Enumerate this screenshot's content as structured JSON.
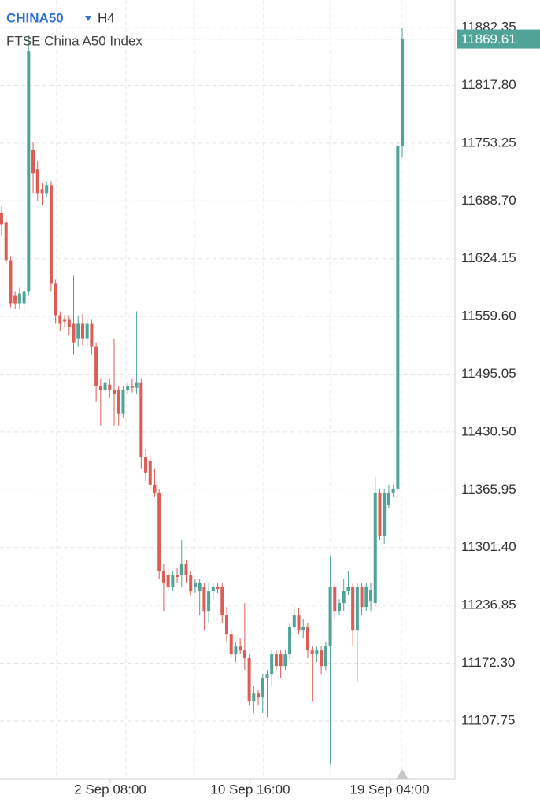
{
  "chart_data": {
    "type": "candlestick",
    "title": "CHINA50",
    "interval": "H4",
    "subtitle": "FTSE China A50 Index",
    "up_color": "#4fa397",
    "down_color": "#dc5d55",
    "grid": true,
    "open": [
      11675.4,
      11664.9,
      11622.6,
      11583.0,
      11574.2,
      11574.2,
      11587.4,
      11745.9,
      11723.9,
      11701.9,
      11697.5,
      11706.3,
      11596.2,
      11561.0,
      11556.6,
      11556.6,
      11552.2,
      11534.5,
      11552.2,
      11534.5,
      11552.2,
      11525.7,
      11481.7,
      11477.3,
      11483.5,
      11477.3,
      11477.3,
      11450.9,
      11477.3,
      11481.7,
      11479.9,
      11486.1,
      11402.5,
      11398.0,
      11371.6,
      11362.8,
      11274.8,
      11270.4,
      11257.2,
      11270.4,
      11270.4,
      11283.6,
      11270.4,
      11257.2,
      11252.7,
      11257.2,
      11230.7,
      11252.7,
      11257.2,
      11257.2,
      11226.3,
      11204.3,
      11182.3,
      11191.1,
      11186.7,
      11177.9,
      11129.5,
      11138.3,
      11133.9,
      11155.9,
      11160.3,
      11182.3,
      11182.3,
      11169.1,
      11182.3,
      11213.1,
      11226.3,
      11208.7,
      11213.1,
      11186.7,
      11182.3,
      11186.7,
      11169.1,
      11191.1,
      11257.2,
      11230.7,
      11239.5,
      11252.7,
      11257.2,
      11208.7,
      11257.2,
      11235.1,
      11242.2,
      11239.5,
      11362.8,
      11314.4,
      11349.6,
      11362.8,
      11367.2,
      11750.3
    ],
    "high": [
      11682.5,
      11671.0,
      11627.0,
      11587.4,
      11591.8,
      11591.8,
      11873.6,
      11754.7,
      11732.7,
      11708.9,
      11710.7,
      11710.7,
      11600.6,
      11565.4,
      11561.0,
      11561.0,
      11605.0,
      11561.0,
      11562.7,
      11556.6,
      11556.6,
      11530.1,
      11490.5,
      11499.3,
      11490.5,
      11534.5,
      11481.7,
      11481.7,
      11486.1,
      11490.5,
      11565.4,
      11490.5,
      11411.3,
      11404.2,
      11389.2,
      11367.2,
      11283.6,
      11279.2,
      11274.8,
      11279.2,
      11310.0,
      11288.0,
      11274.8,
      11266.0,
      11266.0,
      11261.6,
      11261.6,
      11261.6,
      11261.6,
      11261.6,
      11235.1,
      11210.5,
      11195.5,
      11199.9,
      11239.5,
      11182.3,
      11147.1,
      11142.7,
      11160.3,
      11164.7,
      11186.7,
      11186.7,
      11186.7,
      11186.7,
      11217.5,
      11235.1,
      11233.4,
      11221.9,
      11217.5,
      11191.1,
      11191.1,
      11191.1,
      11195.5,
      11292.4,
      11261.6,
      11243.9,
      11266.0,
      11274.8,
      11261.6,
      11261.6,
      11261.6,
      11261.6,
      11261.6,
      11380.4,
      11367.2,
      11367.2,
      11371.6,
      11371.6,
      11754.7,
      11882.4
    ],
    "low": [
      11649.0,
      11618.2,
      11569.8,
      11568.0,
      11568.0,
      11565.4,
      11583.0,
      11697.5,
      11688.6,
      11684.2,
      11693.0,
      11587.4,
      11552.2,
      11543.3,
      11547.8,
      11538.9,
      11516.9,
      11525.7,
      11527.5,
      11525.7,
      11516.9,
      11464.1,
      11437.7,
      11472.9,
      11468.5,
      11437.7,
      11437.7,
      11446.5,
      11472.9,
      11474.7,
      11472.9,
      11389.2,
      11376.0,
      11367.2,
      11358.4,
      11266.0,
      11230.7,
      11252.7,
      11252.7,
      11261.6,
      11257.2,
      11261.6,
      11248.3,
      11251.0,
      11226.3,
      11208.7,
      11217.5,
      11243.9,
      11251.0,
      11217.5,
      11195.5,
      11177.9,
      11173.5,
      11182.3,
      11164.7,
      11125.1,
      11116.3,
      11125.1,
      11116.3,
      11111.9,
      11147.1,
      11164.7,
      11155.9,
      11164.7,
      11177.9,
      11208.7,
      11204.3,
      11199.9,
      11177.9,
      11129.5,
      11173.5,
      11160.3,
      11164.7,
      11059.0,
      11221.9,
      11226.3,
      11230.7,
      11248.3,
      11191.1,
      11151.5,
      11226.3,
      11230.7,
      11230.7,
      11235.1,
      11310.0,
      11305.6,
      11345.2,
      11358.4,
      11358.4,
      11737.1
    ],
    "close": [
      11662.2,
      11622.6,
      11574.2,
      11574.2,
      11585.6,
      11587.4,
      11856.0,
      11719.5,
      11697.5,
      11697.5,
      11706.3,
      11596.2,
      11561.0,
      11552.2,
      11553.9,
      11547.8,
      11530.1,
      11552.2,
      11534.5,
      11552.2,
      11525.7,
      11481.7,
      11477.3,
      11486.1,
      11477.3,
      11472.9,
      11450.9,
      11477.3,
      11481.7,
      11479.9,
      11486.1,
      11402.5,
      11384.8,
      11371.6,
      11362.8,
      11274.8,
      11261.6,
      11257.2,
      11270.4,
      11268.6,
      11283.6,
      11270.4,
      11252.7,
      11261.6,
      11261.6,
      11230.7,
      11252.7,
      11257.2,
      11255.4,
      11226.3,
      11204.3,
      11182.3,
      11191.1,
      11186.7,
      11177.9,
      11129.5,
      11138.3,
      11133.9,
      11155.9,
      11160.3,
      11182.3,
      11169.1,
      11169.1,
      11182.3,
      11213.1,
      11226.3,
      11208.7,
      11213.1,
      11186.7,
      11182.3,
      11186.7,
      11169.1,
      11191.1,
      11257.2,
      11230.7,
      11239.5,
      11252.7,
      11257.2,
      11208.7,
      11257.2,
      11235.1,
      11257.2,
      11254.5,
      11362.8,
      11314.4,
      11362.8,
      11362.8,
      11367.2,
      11750.3,
      11869.61
    ],
    "ylim": [
      11042.6,
      11913.2
    ],
    "yticks": [
      11107.75,
      {
        "value": 11172.3,
        "label": "11172.30"
      },
      11236.85,
      {
        "value": 11301.4,
        "label": "11301.40"
      },
      11365.95,
      {
        "value": 11430.5,
        "label": "11430.50"
      },
      11495.05,
      {
        "value": 11559.6,
        "label": "11559.60"
      },
      11624.15,
      {
        "value": 11688.7,
        "label": "11688.70"
      },
      11753.25,
      {
        "value": 11817.8,
        "label": "11817.80"
      },
      11882.35
    ],
    "xlim": [
      -0.35,
      100.7
    ],
    "xticks": [
      12.24,
      27.63,
      42.83,
      58.22,
      73.08,
      88.81
    ],
    "xtick_labels": [
      {
        "value": 24.13,
        "label": "2 Sep 08:00"
      },
      {
        "value": 55.24,
        "label": "10 Sep 16:00"
      },
      {
        "value": 86.19,
        "label": "19 Sep 04:00"
      }
    ]
  }
}
